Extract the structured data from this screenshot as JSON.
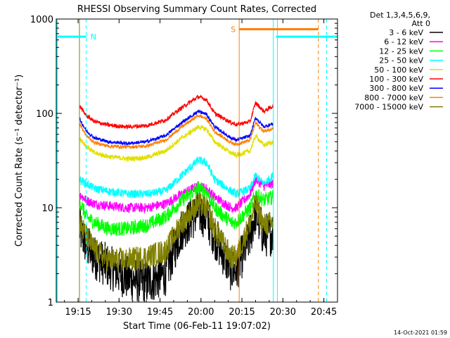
{
  "chart_data": {
    "type": "line",
    "title": "RHESSI Observing Summary Count Rates, Corrected",
    "xlabel": "Start Time (06-Feb-11 19:07:02)",
    "ylabel": "Corrected Count Rate (s⁻¹ detector⁻¹)",
    "yscale": "log",
    "ylim": [
      1,
      1000
    ],
    "xlim_minutes": [
      0,
      103
    ],
    "x_ticks": [
      {
        "label": "19:15",
        "minute": 8
      },
      {
        "label": "19:30",
        "minute": 23
      },
      {
        "label": "19:45",
        "minute": 38
      },
      {
        "label": "20:00",
        "minute": 53
      },
      {
        "label": "20:15",
        "minute": 68
      },
      {
        "label": "20:30",
        "minute": 83
      },
      {
        "label": "20:45",
        "minute": 98
      }
    ],
    "y_ticks": [
      {
        "label": "1",
        "value": 1
      },
      {
        "label": "10",
        "value": 10
      },
      {
        "label": "100",
        "value": 100
      },
      {
        "label": "1000",
        "value": 1000
      }
    ],
    "legend_header": [
      "Det 1,3,4,5,6,9,",
      "Att 0"
    ],
    "legend_position": "right",
    "series": [
      {
        "name": "3 - 6 keV",
        "color": "#000000",
        "x": [
          8.5,
          11,
          14,
          19,
          26,
          33,
          40,
          46,
          52,
          55,
          58,
          64,
          66,
          71,
          73,
          76,
          79.5
        ],
        "y": [
          6,
          4,
          3,
          2.4,
          1.8,
          1.6,
          2,
          6,
          9,
          8,
          5,
          2.2,
          2.2,
          5,
          9,
          5,
          5.5
        ]
      },
      {
        "name": "6 - 12 keV",
        "color": "#ff00ff",
        "x": [
          8.5,
          11,
          14,
          19,
          26,
          33,
          40,
          46,
          52,
          55,
          58,
          64,
          66,
          71,
          73,
          76,
          79.5
        ],
        "y": [
          14,
          12,
          11,
          10.5,
          10,
          10,
          11,
          14,
          17,
          16,
          13,
          10,
          10,
          14,
          20,
          17,
          18
        ]
      },
      {
        "name": "12 - 25 keV",
        "color": "#00ff00",
        "x": [
          8.5,
          11,
          14,
          19,
          26,
          33,
          40,
          46,
          52,
          55,
          58,
          64,
          66,
          71,
          73,
          76,
          79.5
        ],
        "y": [
          12,
          8,
          7,
          6,
          6,
          6.5,
          8,
          12,
          16,
          15,
          10,
          7,
          7,
          10,
          14,
          12,
          13
        ]
      },
      {
        "name": "25 - 50 keV",
        "color": "#00ffff",
        "x": [
          8.5,
          11,
          14,
          19,
          26,
          33,
          40,
          46,
          52,
          55,
          58,
          64,
          66,
          71,
          73,
          76,
          79.5
        ],
        "y": [
          20,
          18,
          16,
          15,
          14,
          14,
          15,
          22,
          32,
          30,
          20,
          15,
          14,
          16,
          22,
          18,
          22
        ]
      },
      {
        "name": "50 - 100 keV",
        "color": "#e0e000",
        "x": [
          8.5,
          11,
          14,
          19,
          26,
          33,
          40,
          46,
          52,
          55,
          58,
          64,
          66,
          71,
          73,
          76,
          79.5
        ],
        "y": [
          55,
          45,
          38,
          35,
          33,
          34,
          40,
          55,
          72,
          68,
          50,
          38,
          36,
          40,
          58,
          46,
          50
        ]
      },
      {
        "name": "100 - 300 keV",
        "color": "#ff0000",
        "x": [
          8.5,
          11,
          14,
          19,
          26,
          33,
          40,
          46,
          52,
          55,
          58,
          64,
          66,
          71,
          73,
          76,
          79.5
        ],
        "y": [
          120,
          95,
          82,
          75,
          72,
          74,
          85,
          115,
          150,
          140,
          100,
          80,
          76,
          82,
          130,
          105,
          120
        ]
      },
      {
        "name": "300 - 800 keV",
        "color": "#0000ff",
        "x": [
          8.5,
          11,
          14,
          19,
          26,
          33,
          40,
          46,
          52,
          55,
          58,
          64,
          66,
          71,
          73,
          76,
          79.5
        ],
        "y": [
          88,
          65,
          55,
          50,
          48,
          50,
          58,
          80,
          105,
          98,
          72,
          55,
          52,
          58,
          90,
          72,
          78
        ]
      },
      {
        "name": "800 - 7000 keV",
        "color": "#ff8000",
        "x": [
          8.5,
          11,
          14,
          19,
          26,
          33,
          40,
          46,
          52,
          55,
          58,
          64,
          66,
          71,
          73,
          76,
          79.5
        ],
        "y": [
          78,
          58,
          49,
          45,
          44,
          45,
          52,
          72,
          95,
          88,
          64,
          49,
          47,
          52,
          80,
          64,
          70
        ]
      },
      {
        "name": "7000 - 15000 keV",
        "color": "#808000",
        "x": [
          8.5,
          11,
          14,
          19,
          26,
          33,
          40,
          46,
          52,
          55,
          58,
          64,
          66,
          71,
          73,
          76,
          79.5
        ],
        "y": [
          7,
          5,
          3.6,
          2.8,
          2.8,
          3,
          3.5,
          7,
          11,
          10,
          6,
          3,
          3,
          7,
          11,
          6.5,
          7
        ]
      }
    ],
    "annotations": {
      "night_label": "N",
      "saa_label": "S",
      "night_segments": [
        [
          0,
          11
        ],
        [
          80.5,
          103
        ]
      ],
      "night_level": 650,
      "night_color": "#00ffff",
      "saa_segments": [
        [
          67,
          96
        ]
      ],
      "saa_level": 780,
      "saa_color": "#ff8000",
      "cyan_vlines_dashed": [
        11,
        99
      ],
      "cyan_vlines_solid": [
        79.5,
        81
      ],
      "orange_vlines_solid": [
        8.5,
        67
      ],
      "orange_vlines_dashed": [
        96
      ],
      "olive_vline": [
        8.5
      ]
    },
    "grid": false
  },
  "footer_timestamp": "14-Oct-2021 01:59"
}
